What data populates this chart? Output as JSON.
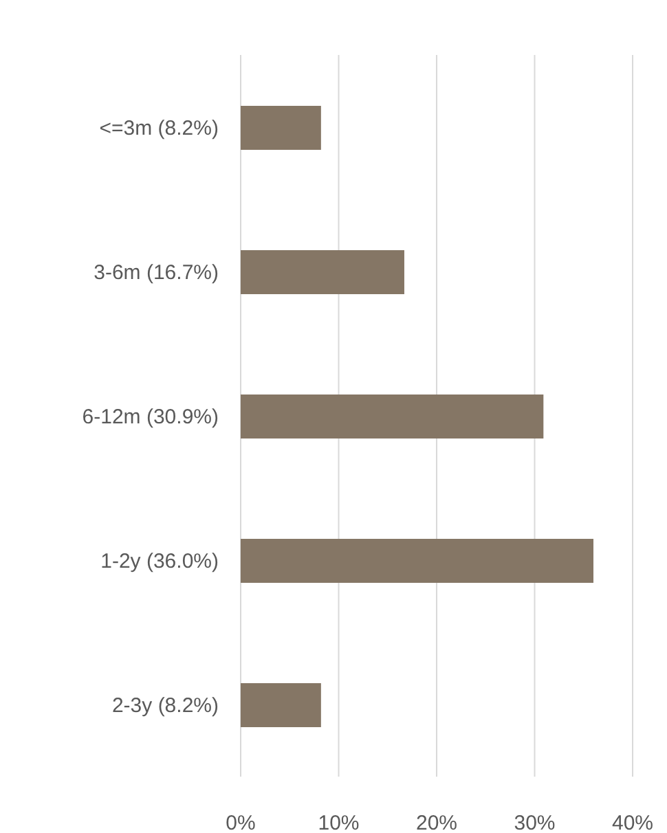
{
  "chart_data": {
    "type": "bar",
    "orientation": "horizontal",
    "categories": [
      "<=3m (8.2%)",
      "3-6m (16.7%)",
      "6-12m (30.9%)",
      "1-2y (36.0%)",
      "2-3y (8.2%)"
    ],
    "values": [
      8.2,
      16.7,
      30.9,
      36.0,
      8.2
    ],
    "color": "#857665",
    "xlim": [
      0,
      40
    ],
    "xticks": [
      {
        "value": 0,
        "label": "0%"
      },
      {
        "value": 10,
        "label": "10%"
      },
      {
        "value": 20,
        "label": "20%"
      },
      {
        "value": 30,
        "label": "30%"
      },
      {
        "value": 40,
        "label": "40%"
      }
    ],
    "grid": "x"
  }
}
